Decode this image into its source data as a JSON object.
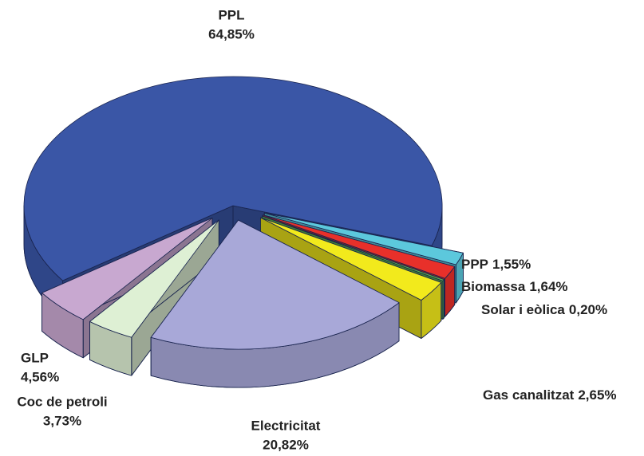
{
  "chart_data": {
    "type": "pie3d",
    "categories": [
      "PPP",
      "Biomassa",
      "Solar i eòlica",
      "Gas canalitzat",
      "Electricitat",
      "Coc de petroli",
      "GLP",
      "PPL"
    ],
    "values": [
      1.55,
      1.64,
      0.2,
      2.65,
      20.82,
      3.73,
      4.56,
      64.85
    ],
    "value_labels": [
      "1,55%",
      "1,64%",
      "0,20%",
      "2,65%",
      "20,82%",
      "3,73%",
      "4,56%",
      "64,85%"
    ],
    "colors": [
      "#5cc8dc",
      "#e8302a",
      "#5cb84a",
      "#f2ea1c",
      "#a8a8d8",
      "#def0d4",
      "#c8a8d0",
      "#3a56a6"
    ]
  }
}
